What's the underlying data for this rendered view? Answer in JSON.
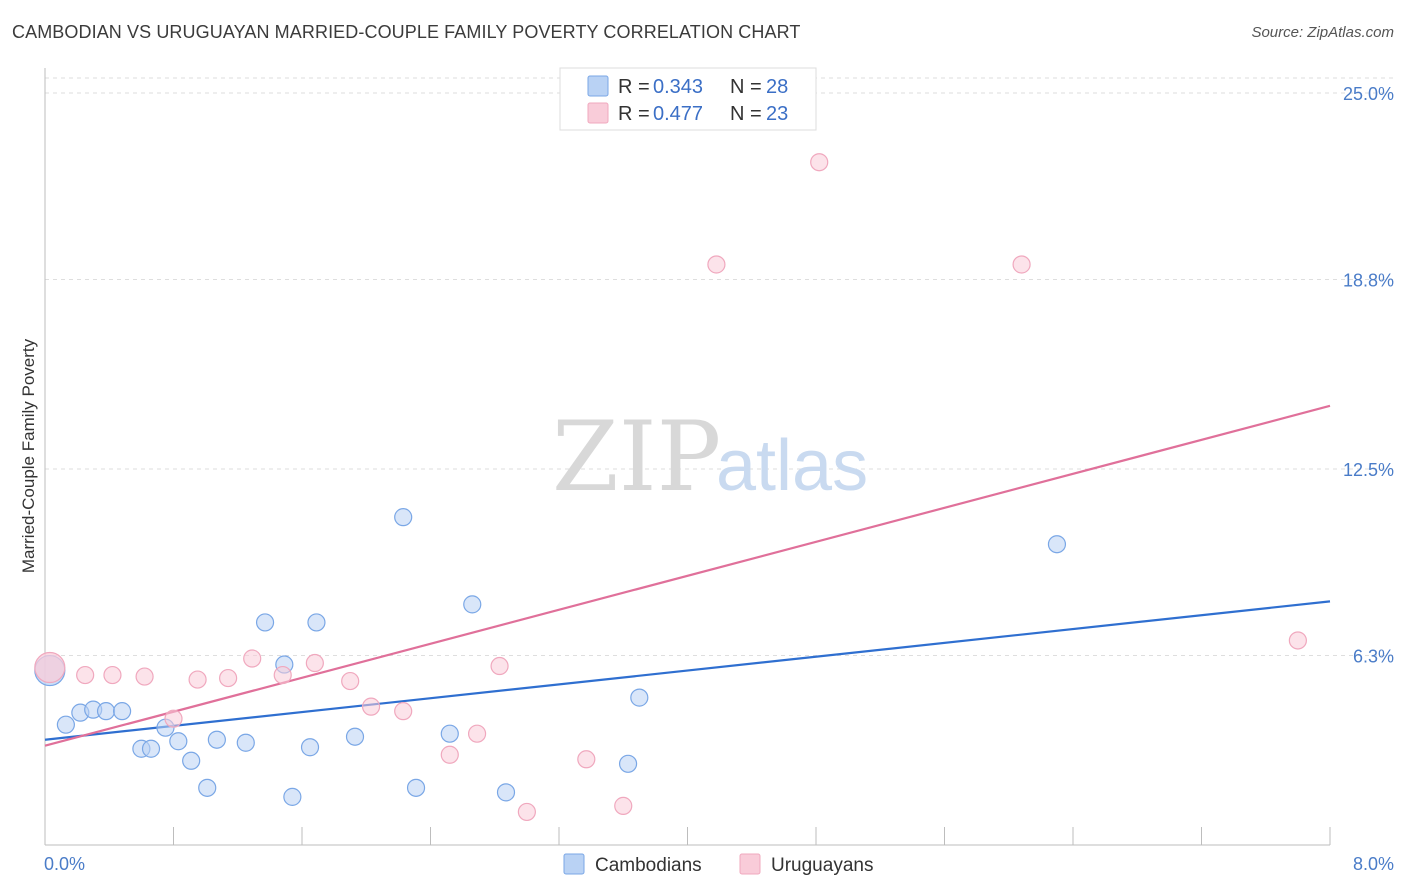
{
  "title": "CAMBODIAN VS URUGUAYAN MARRIED-COUPLE FAMILY POVERTY CORRELATION CHART",
  "source": "Source: ZipAtlas.com",
  "watermark": {
    "part1": "ZIP",
    "part2": "atlas"
  },
  "chart_data": {
    "type": "scatter",
    "ylabel": "Married-Couple Family Poverty",
    "xlim": [
      0,
      8
    ],
    "ylim": [
      0,
      25.5
    ],
    "x_tick_labels": {
      "min": "0.0%",
      "max": "8.0%"
    },
    "y_ticks": [
      {
        "value": 25.0,
        "label": "25.0%"
      },
      {
        "value": 18.8,
        "label": "18.8%"
      },
      {
        "value": 12.5,
        "label": "12.5%"
      },
      {
        "value": 6.3,
        "label": "6.3%"
      }
    ],
    "legend": [
      {
        "r_label": "R = ",
        "r_value": "0.343",
        "n_label": "N = ",
        "n_value": "28"
      },
      {
        "r_label": "R = ",
        "r_value": "0.477",
        "n_label": "N = ",
        "n_value": "23"
      }
    ],
    "series": [
      {
        "name": "Cambodians",
        "color": "#7aa7e6",
        "fill": "#b9d2f4",
        "line_color": "#2f6fd0",
        "trend": {
          "x": [
            0,
            8
          ],
          "y": [
            3.5,
            8.1
          ]
        },
        "points": [
          {
            "x": 0.03,
            "y": 5.8,
            "big": true
          },
          {
            "x": 0.13,
            "y": 4.0
          },
          {
            "x": 0.22,
            "y": 4.4
          },
          {
            "x": 0.3,
            "y": 4.5
          },
          {
            "x": 0.38,
            "y": 4.45
          },
          {
            "x": 0.48,
            "y": 4.45
          },
          {
            "x": 0.6,
            "y": 3.2
          },
          {
            "x": 0.66,
            "y": 3.2
          },
          {
            "x": 0.75,
            "y": 3.9
          },
          {
            "x": 0.83,
            "y": 3.45
          },
          {
            "x": 0.91,
            "y": 2.8
          },
          {
            "x": 1.01,
            "y": 1.9
          },
          {
            "x": 1.07,
            "y": 3.5
          },
          {
            "x": 1.25,
            "y": 3.4
          },
          {
            "x": 1.37,
            "y": 7.4
          },
          {
            "x": 1.49,
            "y": 6.0
          },
          {
            "x": 1.54,
            "y": 1.6
          },
          {
            "x": 1.65,
            "y": 3.25
          },
          {
            "x": 1.69,
            "y": 7.4
          },
          {
            "x": 1.93,
            "y": 3.6
          },
          {
            "x": 2.23,
            "y": 10.9
          },
          {
            "x": 2.31,
            "y": 1.9
          },
          {
            "x": 2.52,
            "y": 3.7
          },
          {
            "x": 2.66,
            "y": 8.0
          },
          {
            "x": 2.87,
            "y": 1.75
          },
          {
            "x": 3.63,
            "y": 2.7
          },
          {
            "x": 3.7,
            "y": 4.9
          },
          {
            "x": 6.3,
            "y": 10.0
          }
        ]
      },
      {
        "name": "Uruguayans",
        "color": "#f0a8be",
        "fill": "#f9ccd9",
        "line_color": "#e0709a",
        "trend": {
          "x": [
            0,
            8
          ],
          "y": [
            3.3,
            14.6
          ]
        },
        "points": [
          {
            "x": 0.03,
            "y": 5.9,
            "big": true
          },
          {
            "x": 0.25,
            "y": 5.65
          },
          {
            "x": 0.42,
            "y": 5.65
          },
          {
            "x": 0.62,
            "y": 5.6
          },
          {
            "x": 0.8,
            "y": 4.2
          },
          {
            "x": 0.95,
            "y": 5.5
          },
          {
            "x": 1.14,
            "y": 5.55
          },
          {
            "x": 1.29,
            "y": 6.2
          },
          {
            "x": 1.48,
            "y": 5.65
          },
          {
            "x": 1.68,
            "y": 6.05
          },
          {
            "x": 1.9,
            "y": 5.45
          },
          {
            "x": 2.03,
            "y": 4.6
          },
          {
            "x": 2.23,
            "y": 4.45
          },
          {
            "x": 2.52,
            "y": 3.0
          },
          {
            "x": 2.69,
            "y": 3.7
          },
          {
            "x": 2.83,
            "y": 5.95
          },
          {
            "x": 3.0,
            "y": 1.1
          },
          {
            "x": 3.37,
            "y": 2.85
          },
          {
            "x": 3.6,
            "y": 1.3
          },
          {
            "x": 4.18,
            "y": 19.3
          },
          {
            "x": 4.82,
            "y": 22.7
          },
          {
            "x": 6.08,
            "y": 19.3
          },
          {
            "x": 7.8,
            "y": 6.8
          }
        ]
      }
    ]
  }
}
